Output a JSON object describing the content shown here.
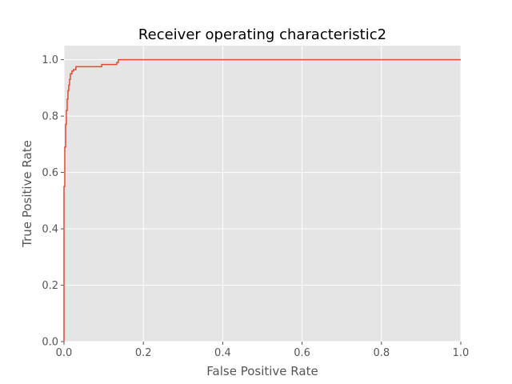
{
  "chart_data": {
    "type": "line",
    "title": "Receiver operating characteristic2",
    "xlabel": "False Positive Rate",
    "ylabel": "True Positive Rate",
    "xlim": [
      0.0,
      1.0
    ],
    "ylim": [
      0.0,
      1.05
    ],
    "grid": true,
    "x_ticks": [
      "0.0",
      "0.2",
      "0.4",
      "0.6",
      "0.8",
      "1.0"
    ],
    "y_ticks": [
      "0.0",
      "0.2",
      "0.4",
      "0.6",
      "0.8",
      "1.0"
    ],
    "colors": {
      "background": "#E5E5E5",
      "grid": "#FFFFFF",
      "line": "#E24A33"
    },
    "series": [
      {
        "x": [
          0.0,
          0.0,
          0.002,
          0.002,
          0.004,
          0.004,
          0.006,
          0.006,
          0.008,
          0.008,
          0.01,
          0.01,
          0.012,
          0.012,
          0.014,
          0.014,
          0.016,
          0.016,
          0.02,
          0.02,
          0.024,
          0.024,
          0.03,
          0.03,
          0.095,
          0.095,
          0.133,
          0.133,
          0.137,
          0.137,
          1.0
        ],
        "y": [
          0.0,
          0.55,
          0.55,
          0.69,
          0.69,
          0.77,
          0.77,
          0.82,
          0.82,
          0.86,
          0.86,
          0.89,
          0.89,
          0.91,
          0.91,
          0.93,
          0.93,
          0.95,
          0.95,
          0.96,
          0.96,
          0.965,
          0.965,
          0.975,
          0.975,
          0.983,
          0.983,
          0.99,
          0.99,
          1.0,
          1.0
        ]
      }
    ]
  }
}
